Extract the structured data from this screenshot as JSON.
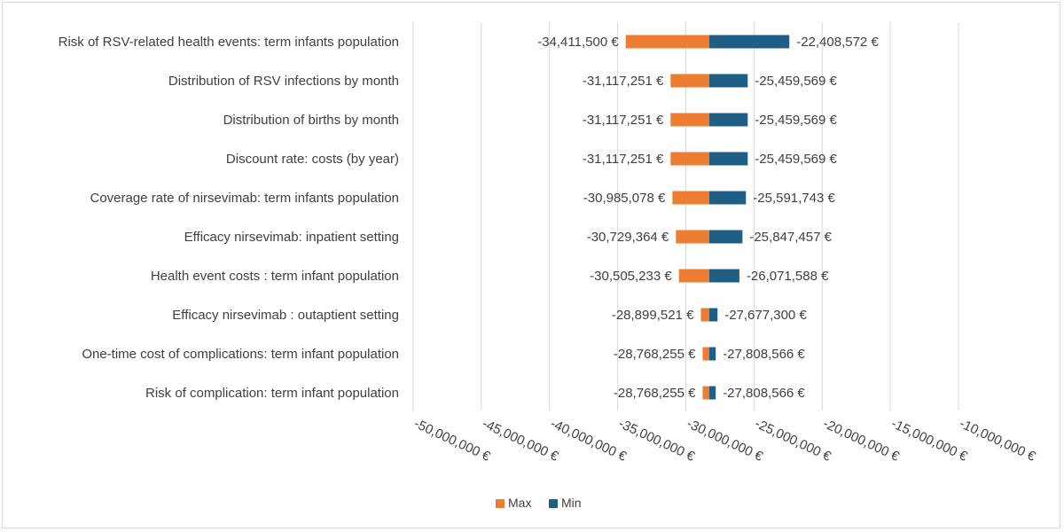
{
  "chart_data": {
    "type": "bar",
    "subtype": "tornado",
    "title": "",
    "xlabel": "",
    "ylabel": "",
    "baseline": -28288410,
    "xlim": [
      -50000000,
      -10000000
    ],
    "x_ticks": [
      -50000000,
      -45000000,
      -40000000,
      -35000000,
      -30000000,
      -25000000,
      -20000000,
      -15000000,
      -10000000
    ],
    "x_tick_labels": [
      "-50,000,000 €",
      "-45,000,000 €",
      "-40,000,000 €",
      "-35,000,000 €",
      "-30,000,000 €",
      "-25,000,000 €",
      "-20,000,000 €",
      "-15,000,000 €",
      "-10,000,000 €"
    ],
    "grid": true,
    "legend_position": "bottom-center",
    "categories": [
      "Risk of RSV-related health events: term infants population",
      "Distribution of RSV infections by month",
      "Distribution of births by month",
      "Discount rate: costs (by year)",
      "Coverage rate of nirsevimab: term infants population",
      "Efficacy nirsevimab: inpatient setting",
      "Health event costs : term infant population",
      "Efficacy nirsevimab : outaptient setting",
      "One-time cost of complications: term infant population",
      "Risk of complication: term infant population"
    ],
    "series": [
      {
        "name": "Max",
        "color": "#ED7D31",
        "values": [
          -34411500,
          -31117251,
          -31117251,
          -31117251,
          -30985078,
          -30729364,
          -30505233,
          -28899521,
          -28768255,
          -28768255
        ],
        "labels": [
          "-34,411,500  €",
          "-31,117,251  €",
          "-31,117,251  €",
          "-31,117,251  €",
          "-30,985,078  €",
          "-30,729,364  €",
          "-30,505,233  €",
          "-28,899,521  €",
          "-28,768,255  €",
          "-28,768,255  €"
        ]
      },
      {
        "name": "Min",
        "color": "#1F5F85",
        "values": [
          -22408572,
          -25459569,
          -25459569,
          -25459569,
          -25591743,
          -25847457,
          -26071588,
          -27677300,
          -27808566,
          -27808566
        ],
        "labels": [
          "-22,408,572  €",
          "-25,459,569  €",
          "-25,459,569  €",
          "-25,459,569  €",
          "-25,591,743  €",
          "-25,847,457  €",
          "-26,071,588  €",
          "-27,677,300  €",
          "-27,808,566  €",
          "-27,808,566  €"
        ]
      }
    ]
  }
}
